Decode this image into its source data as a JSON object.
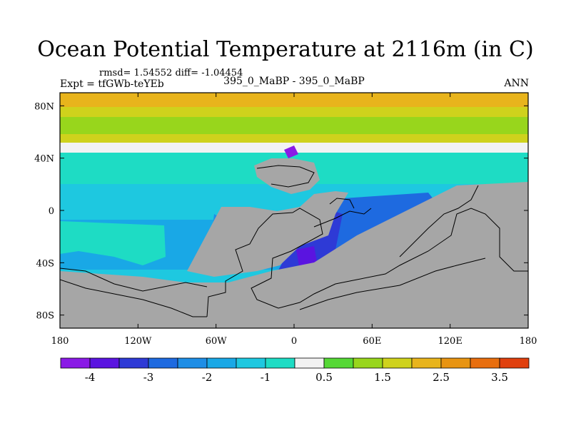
{
  "title": "Ocean Potential Temperature at 2116m (in C)",
  "stats_line": "rmsd= 1.54552  diff= -1.04454",
  "experiment": "Expt = tfGWb-teYEb",
  "comparison": "395_0_MaBP - 395_0_MaBP",
  "season": "ANN",
  "map": {
    "x_ticks": [
      {
        "lon": -180,
        "label": "180"
      },
      {
        "lon": -120,
        "label": "120W"
      },
      {
        "lon": -60,
        "label": "60W"
      },
      {
        "lon": 0,
        "label": "0"
      },
      {
        "lon": 60,
        "label": "60E"
      },
      {
        "lon": 120,
        "label": "120E"
      },
      {
        "lon": 180,
        "label": "180"
      }
    ],
    "y_ticks": [
      {
        "lat": 80,
        "label": "80N"
      },
      {
        "lat": 40,
        "label": "40N"
      },
      {
        "lat": 0,
        "label": "0"
      },
      {
        "lat": -40,
        "label": "40S"
      },
      {
        "lat": -80,
        "label": "80S"
      }
    ],
    "land_color": "#a6a6a6"
  },
  "colorbar": {
    "colors": [
      "#8a1ae6",
      "#5a14e0",
      "#2e3ad6",
      "#1e6ae0",
      "#1e8ee6",
      "#19a8e6",
      "#1ec8e0",
      "#1edcc4",
      "#f2f2f2",
      "#55d835",
      "#98d61c",
      "#cfd21c",
      "#e8b41c",
      "#e89412",
      "#e86e0e",
      "#e0400e"
    ],
    "labels": [
      {
        "index": 1,
        "label": "-4"
      },
      {
        "index": 3,
        "label": "-3"
      },
      {
        "index": 5,
        "label": "-2"
      },
      {
        "index": 7,
        "label": "-1"
      },
      {
        "index": 9,
        "label": "0.5"
      },
      {
        "index": 11,
        "label": "1.5"
      },
      {
        "index": 13,
        "label": "2.5"
      },
      {
        "index": 15,
        "label": "3.5"
      }
    ]
  }
}
